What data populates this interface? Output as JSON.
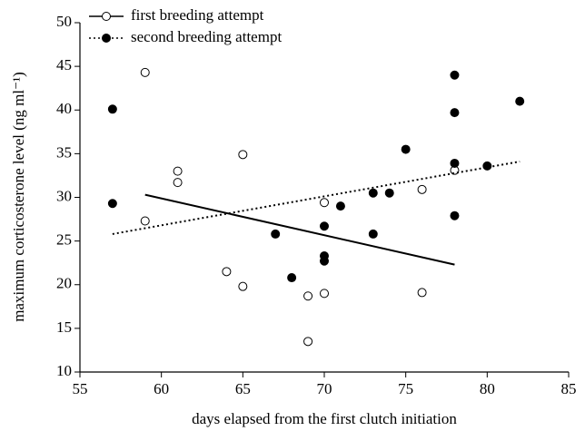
{
  "chart_data": {
    "type": "scatter",
    "x_label": "days elapsed from the first clutch initiation",
    "y_label": "maximum corticosterone level (ng ml⁻¹)",
    "xlim": [
      55,
      85
    ],
    "xticks": [
      55,
      60,
      65,
      70,
      75,
      80,
      85
    ],
    "ylim": [
      10,
      50
    ],
    "yticks": [
      10,
      15,
      20,
      25,
      30,
      35,
      40,
      45,
      50
    ],
    "legend": "upper left",
    "series": [
      {
        "name": "first breeding attempt",
        "color": "#000000",
        "filled": false,
        "line_style": "solid",
        "x": [
          59,
          59,
          61,
          61,
          65,
          64,
          65,
          70,
          69,
          70,
          69,
          76,
          76,
          78
        ],
        "values": [
          44.3,
          27.3,
          33,
          31.7,
          34.9,
          21.5,
          19.8,
          29.4,
          18.7,
          19,
          13.5,
          30.9,
          19.1,
          33.1
        ],
        "trend_x": [
          59,
          78
        ],
        "trend_y": [
          30.3,
          22.3
        ]
      },
      {
        "name": "second breeding attempt",
        "color": "#000000",
        "filled": true,
        "line_style": "dotted",
        "x": [
          57,
          57,
          67,
          68,
          70,
          70,
          70,
          71,
          73,
          73,
          74,
          75,
          78,
          78,
          78,
          78,
          80,
          82
        ],
        "values": [
          40.1,
          29.3,
          25.8,
          20.8,
          26.7,
          23.3,
          22.7,
          29,
          30.5,
          25.8,
          30.5,
          35.5,
          44,
          39.7,
          33.9,
          27.9,
          33.6,
          41
        ],
        "trend_x": [
          57,
          82
        ],
        "trend_y": [
          25.8,
          34.1
        ]
      }
    ]
  }
}
